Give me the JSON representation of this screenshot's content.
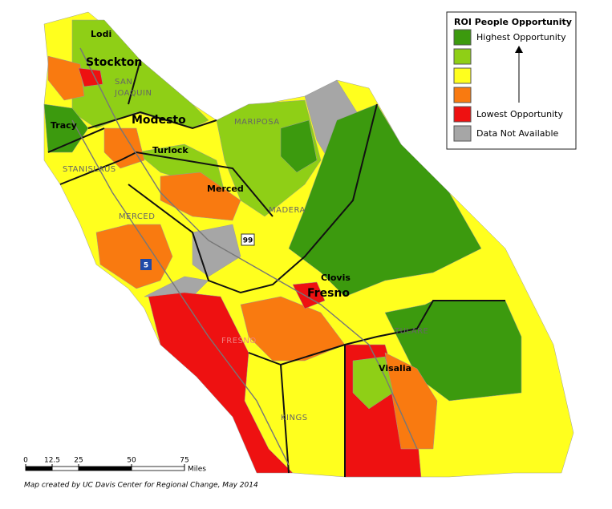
{
  "legend": {
    "title": "ROI People Opportunity",
    "items": [
      {
        "color": "#3c9a0e",
        "label": "Highest Opportunity"
      },
      {
        "color": "#8fcf16"
      },
      {
        "color": "#ffff1e"
      },
      {
        "color": "#f97a10"
      },
      {
        "color": "#ee1111",
        "label": "Lowest Opportunity"
      },
      {
        "color": "#a6a6a6",
        "label": "Data Not Available"
      }
    ]
  },
  "cities": [
    "Lodi",
    "Stockton",
    "Tracy",
    "Modesto",
    "Turlock",
    "Merced",
    "Clovis",
    "Fresno",
    "Visalia"
  ],
  "counties": {
    "san_joaquin": [
      "SAN",
      "JOAQUIN"
    ],
    "stanislaus": "STANISLAUS",
    "mariposa": "MARIPOSA",
    "merced": "MERCED",
    "madera": "MADERA",
    "fresno": "FRESNO",
    "tulare": "TULARE",
    "kings": "KINGS"
  },
  "highways": [
    "99",
    "5"
  ],
  "scale_bar": {
    "ticks": [
      0,
      12.5,
      25,
      50,
      75
    ],
    "unit": "Miles"
  },
  "credit": "Map created by UC Davis Center for Regional Change, May 2014"
}
